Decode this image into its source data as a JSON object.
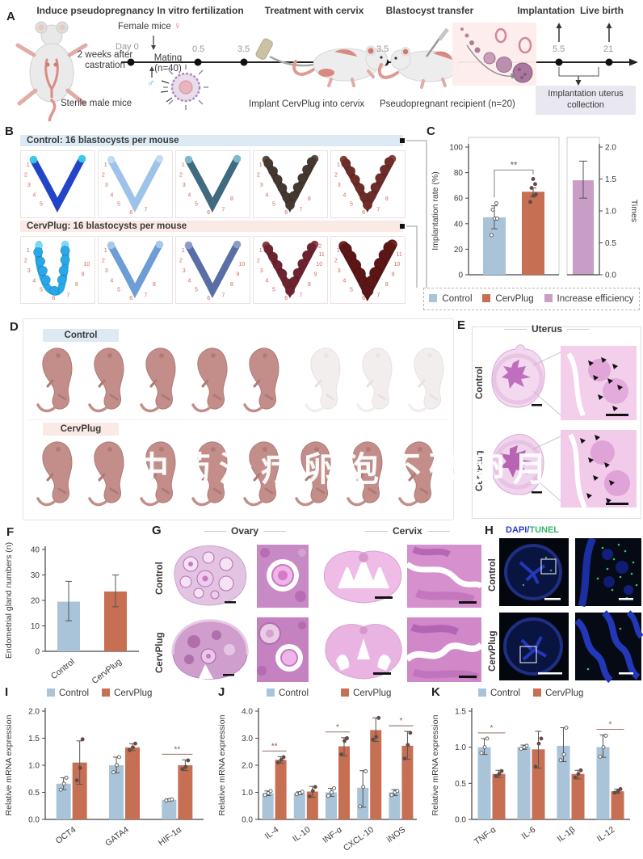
{
  "colors": {
    "control": "#a9c3d8",
    "cervplug": "#c76f52",
    "increase": "#c99ec6",
    "control_band": "#ddeaf3",
    "cervplug_band": "#fbe9e5",
    "site_number": "#d4685f",
    "dapi_blue": "#2b3bd0",
    "tunel_green": "#35b96a"
  },
  "watermark": {
    "text": "中药治疗卵泡不破卵月"
  },
  "panel_a": {
    "label": "A",
    "stages": [
      "Induce pseudopregnancy",
      "In vitro fertilization",
      "Treatment with cervix",
      "Blastocyst transfer",
      "Implantation",
      "Live birth"
    ],
    "female_mice": "Female mice",
    "female_symbol": "♀",
    "male_symbol": "♂",
    "castration": "2 weeks after castration",
    "sterile": "Sterile male mice",
    "day0": "Day 0",
    "mating": "Mating (n=40)",
    "ticks": [
      "0.5",
      "3.5",
      "3.5",
      "5.5",
      "21"
    ],
    "implant": "Implant CervPlug into cervix",
    "recipient": "Pseudopregnant recipient (n=20)",
    "collection": "Implantation uterus collection"
  },
  "panel_b": {
    "label": "B",
    "rows": [
      {
        "header": "Control: 16 blastocysts per mouse",
        "band_color": "#ddeaf3",
        "cells": [
          {
            "color": "#2244c8",
            "tip": "#39c8e8",
            "beads": false,
            "thick": false,
            "shape": "v",
            "n": 5
          },
          {
            "color": "#9ec2e8",
            "tip": "#c2ddf2",
            "beads": false,
            "thick": false,
            "shape": "v",
            "n": 7
          },
          {
            "color": "#3f6a80",
            "tip": "#7fb8c8",
            "beads": false,
            "thick": false,
            "shape": "v",
            "n": 8
          },
          {
            "color": "#453831",
            "tip": "#5a4a40",
            "beads": true,
            "thick": false,
            "shape": "v",
            "n": 8
          },
          {
            "color": "#6e2d28",
            "tip": "#8a423a",
            "beads": true,
            "thick": false,
            "shape": "v",
            "n": 8
          }
        ]
      },
      {
        "header": "CervPlug: 16 blastocysts per mouse",
        "band_color": "#fbe9e5",
        "cells": [
          {
            "color": "#28a8e8",
            "tip": "#7fd8f2",
            "beads": true,
            "thick": false,
            "shape": "parallel",
            "n": 10
          },
          {
            "color": "#6e9cd6",
            "tip": "#a8c8e8",
            "beads": false,
            "thick": false,
            "shape": "v",
            "n": 8
          },
          {
            "color": "#5a6ea6",
            "tip": "#8a9cc8",
            "beads": false,
            "thick": false,
            "shape": "v",
            "n": 10
          },
          {
            "color": "#6e2430",
            "tip": "#8a3a42",
            "beads": true,
            "thick": false,
            "shape": "v",
            "n": 12
          },
          {
            "color": "#5c1616",
            "tip": "#7a2424",
            "beads": true,
            "thick": true,
            "shape": "v",
            "n": 11
          }
        ]
      }
    ]
  },
  "panel_c": {
    "label": "C"
  },
  "panel_d": {
    "label": "D",
    "rows": [
      {
        "label": "Control",
        "band_color": "#ddeaf3",
        "solid": 5,
        "faded": 3
      },
      {
        "label": "CervPlug",
        "band_color": "#fbe9e5",
        "solid": 8,
        "faded": 0
      }
    ]
  },
  "panel_e": {
    "label": "E",
    "title": "Uterus",
    "rows": [
      "Control",
      "CervPlug"
    ]
  },
  "panel_g": {
    "label": "G",
    "ovary": "Ovary",
    "cervix": "Cervix",
    "rows": [
      "Control",
      "CervPlug"
    ]
  },
  "panel_h": {
    "label": "H",
    "dapi": "DAPI",
    "slash": "/",
    "tunel": "TUNEL",
    "rows": [
      "Control",
      "CervPlug"
    ]
  },
  "chart_data": [
    {
      "panel": "C",
      "type": "bar",
      "left": {
        "ylabel": "Implantation rate (%)",
        "ylim": [
          0,
          100
        ],
        "yticks": [
          "0",
          "20",
          "40",
          "60",
          "80",
          "100"
        ],
        "bars": [
          {
            "name": "Control",
            "color": "#a9c3d8",
            "value": 45,
            "error": [
              36,
              54
            ],
            "points": [
              31,
              44,
              44,
              51,
              56
            ]
          },
          {
            "name": "CervPlug",
            "color": "#c76f52",
            "value": 65,
            "error": [
              61,
              68
            ],
            "points": [
              57,
              62,
              63,
              68,
              71,
              75
            ]
          }
        ],
        "sig": "**"
      },
      "right": {
        "ylabel": "Times",
        "ylim": [
          0,
          2
        ],
        "yticks": [
          "0.0",
          "0.5",
          "1.0",
          "1.5",
          "2.0"
        ],
        "bar": {
          "name": "Increase efficiency",
          "color": "#c99ec6",
          "value": 1.48,
          "error": [
            1.2,
            1.78
          ]
        }
      },
      "legend": [
        {
          "label": "Control",
          "color": "#a9c3d8"
        },
        {
          "label": "CervPlug",
          "color": "#c76f52"
        },
        {
          "label": "Increase efficiency",
          "color": "#c99ec6"
        }
      ]
    },
    {
      "panel": "F",
      "type": "bar_single",
      "label": "F",
      "ylabel": "Endometrial gland numbers (n)",
      "ylim": [
        0,
        40
      ],
      "yticks": [
        "0",
        "10",
        "20",
        "30",
        "40"
      ],
      "categories": [
        "Control",
        "CervPlug"
      ],
      "values": [
        19.5,
        23.5
      ],
      "errors": [
        [
          12,
          27.5
        ],
        [
          17.5,
          30
        ]
      ],
      "colors": [
        "#a9c3d8",
        "#c76f52"
      ]
    },
    {
      "panel": "I",
      "type": "grouped_bar",
      "label": "I",
      "ylabel": "Relative mRNA expression",
      "ylim": [
        0,
        2
      ],
      "yticks": [
        "0.0",
        "0.5",
        "1.0",
        "1.5",
        "2.0"
      ],
      "categories": [
        "OCT4",
        "GATA4",
        "HIF-1α"
      ],
      "series": [
        {
          "name": "Control",
          "color": "#a9c3d8",
          "values": [
            0.66,
            1.0,
            0.36
          ],
          "errors": [
            [
              0.55,
              0.77
            ],
            [
              0.86,
              1.15
            ],
            [
              0.34,
              0.38
            ]
          ],
          "points": [
            [
              0.55,
              0.66,
              0.77
            ],
            [
              0.87,
              1.0,
              1.15
            ],
            [
              0.35,
              0.36,
              0.37
            ]
          ]
        },
        {
          "name": "CervPlug",
          "color": "#c76f52",
          "values": [
            1.05,
            1.33,
            1.0
          ],
          "errors": [
            [
              0.65,
              1.45
            ],
            [
              1.27,
              1.4
            ],
            [
              0.9,
              1.1
            ]
          ],
          "points": [
            [
              0.72,
              0.95,
              1.48
            ],
            [
              1.28,
              1.33,
              1.4
            ],
            [
              0.93,
              0.97,
              1.09
            ]
          ]
        }
      ],
      "sig": [
        {
          "category": "HIF-1α",
          "label": "**"
        }
      ]
    },
    {
      "panel": "J",
      "type": "grouped_bar",
      "label": "J",
      "ylabel": "Relative mRNA expression",
      "ylim": [
        0,
        4
      ],
      "yticks": [
        "0.0",
        "1.0",
        "2.0",
        "3.0",
        "4.0"
      ],
      "categories": [
        "IL-4",
        "IL-10",
        "INF-α",
        "CXCL-10",
        "iNOS"
      ],
      "series": [
        {
          "name": "Control",
          "color": "#a9c3d8",
          "values": [
            0.97,
            0.97,
            1.0,
            1.17,
            1.0
          ],
          "errors": [
            [
              0.88,
              1.05
            ],
            [
              0.92,
              1.02
            ],
            [
              0.85,
              1.15
            ],
            [
              0.45,
              1.8
            ],
            [
              0.88,
              1.1
            ]
          ],
          "points": [
            [
              0.9,
              0.97,
              1.05
            ],
            [
              0.93,
              0.97,
              1.02
            ],
            [
              0.87,
              1.0,
              1.15
            ],
            [
              0.48,
              1.2,
              1.78
            ],
            [
              0.9,
              1.0,
              1.05
            ]
          ]
        },
        {
          "name": "CervPlug",
          "color": "#c76f52",
          "values": [
            2.2,
            1.03,
            2.7,
            3.3,
            2.72
          ],
          "errors": [
            [
              2.08,
              2.32
            ],
            [
              0.82,
              1.22
            ],
            [
              2.35,
              3.02
            ],
            [
              2.88,
              3.75
            ],
            [
              2.22,
              3.25
            ]
          ],
          "points": [
            [
              2.1,
              2.2,
              2.3
            ],
            [
              0.85,
              1.05,
              1.2
            ],
            [
              2.4,
              2.9,
              3.0
            ],
            [
              2.95,
              3.05,
              3.75
            ],
            [
              2.25,
              2.75,
              3.2
            ]
          ]
        }
      ],
      "sig": [
        {
          "category": "IL-4",
          "label": "**"
        },
        {
          "category": "INF-α",
          "label": "*"
        },
        {
          "category": "iNOS",
          "label": "*"
        }
      ]
    },
    {
      "panel": "K",
      "type": "grouped_bar",
      "label": "K",
      "ylabel": "Relative mRNA expression",
      "ylim": [
        0,
        1.5
      ],
      "yticks": [
        "0.0",
        "0.5",
        "1.0",
        "1.5"
      ],
      "categories": [
        "TNF-α",
        "IL-6",
        "IL-1β",
        "IL-12"
      ],
      "series": [
        {
          "name": "Control",
          "color": "#a9c3d8",
          "values": [
            1.0,
            1.0,
            1.02,
            1.0
          ],
          "errors": [
            [
              0.9,
              1.12
            ],
            [
              0.97,
              1.03
            ],
            [
              0.8,
              1.27
            ],
            [
              0.86,
              1.17
            ]
          ],
          "points": [
            [
              0.92,
              1.0,
              1.12
            ],
            [
              0.98,
              1.0,
              1.02
            ],
            [
              0.82,
              0.9,
              1.27
            ],
            [
              0.87,
              1.0,
              1.16
            ]
          ]
        },
        {
          "name": "CervPlug",
          "color": "#c76f52",
          "values": [
            0.63,
            0.97,
            0.63,
            0.39
          ],
          "errors": [
            [
              0.58,
              0.68
            ],
            [
              0.71,
              1.22
            ],
            [
              0.56,
              0.68
            ],
            [
              0.36,
              0.42
            ]
          ],
          "points": [
            [
              0.6,
              0.63,
              0.67
            ],
            [
              0.73,
              1.05,
              1.12
            ],
            [
              0.58,
              0.63,
              0.68
            ],
            [
              0.37,
              0.39,
              0.42
            ]
          ]
        }
      ],
      "sig": [
        {
          "category": "TNF-α",
          "label": "*"
        },
        {
          "category": "IL-12",
          "label": "*"
        }
      ]
    }
  ]
}
